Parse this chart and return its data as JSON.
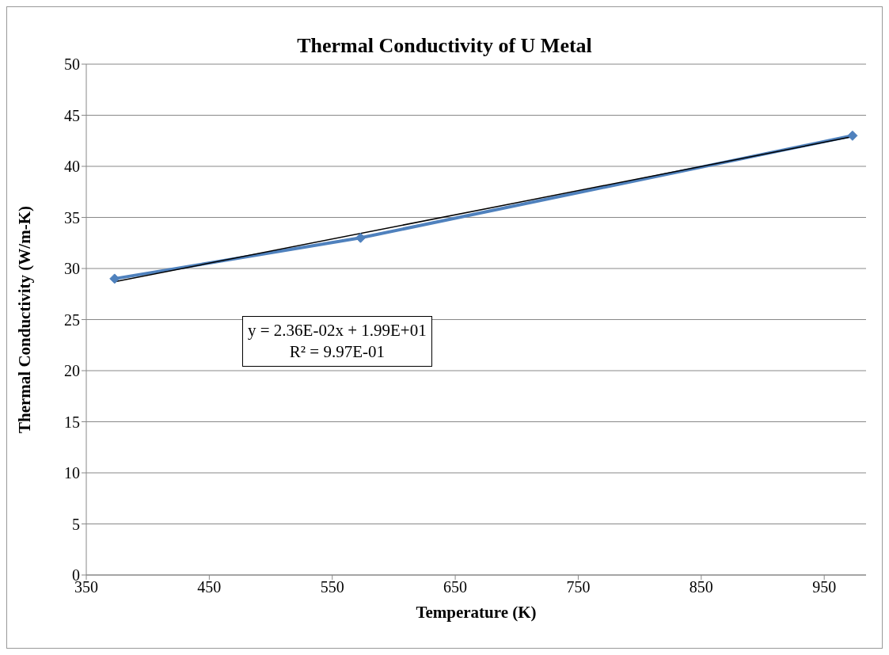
{
  "chart_data": {
    "type": "line",
    "title": "Thermal Conductivity of U Metal",
    "xlabel": "Temperature (K)",
    "ylabel": "Thermal Conductivity (W/m-K)",
    "x": [
      373,
      573,
      973
    ],
    "series": [
      {
        "color": "#4f81bd",
        "values": [
          29,
          33,
          43
        ],
        "marker": "diamond"
      },
      {
        "type": "line",
        "color": "#000000",
        "x": [
          373,
          973
        ],
        "values": [
          28.7,
          42.9
        ],
        "marker": "none"
      }
    ],
    "xlim": [
      350,
      984
    ],
    "xticks": [
      350,
      450,
      550,
      650,
      750,
      850,
      950
    ],
    "ylim": [
      0,
      50
    ],
    "yticks": [
      0,
      5,
      10,
      15,
      20,
      25,
      30,
      35,
      40,
      45,
      50
    ],
    "grid": "y",
    "annotations": [
      "y = 2.36E-02x + 1.99E+01",
      "R² = 9.97E-01"
    ]
  }
}
